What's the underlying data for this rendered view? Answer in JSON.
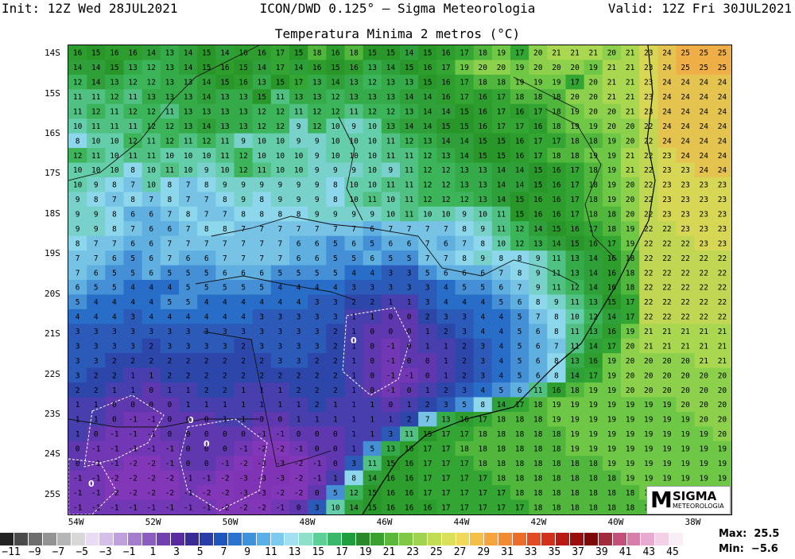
{
  "header": {
    "init": "Init: 12Z Wed 28JUL2021",
    "model": "ICON/DWD 0.125° — Sigma Meteorologia",
    "valid": "Valid: 12Z Fri 30JUL2021"
  },
  "map": {
    "title": "Temperatura Minima 2 metros (°C)",
    "lat_labels": [
      "14S",
      "15S",
      "16S",
      "17S",
      "18S",
      "19S",
      "20S",
      "21S",
      "22S",
      "23S",
      "24S",
      "25S"
    ],
    "lon_labels": [
      "54W",
      "52W",
      "50W",
      "48W",
      "46W",
      "44W",
      "42W",
      "40W",
      "38W"
    ],
    "lat_range": [
      -25.5,
      -13.8
    ],
    "lon_range": [
      -54.2,
      -37.0
    ],
    "contour_label": "0",
    "temperature_rows": [
      [
        16,
        15,
        16,
        16,
        14,
        13,
        14,
        15,
        14,
        16,
        16,
        17,
        15,
        18,
        16,
        18,
        15,
        15,
        14,
        15,
        16,
        17,
        18,
        19,
        17,
        20,
        21,
        21,
        21,
        20,
        21,
        23,
        24,
        25,
        25,
        25
      ],
      [
        14,
        14,
        15,
        13,
        12,
        13,
        14,
        15,
        16,
        15,
        14,
        17,
        14,
        16,
        15,
        16,
        13,
        14,
        15,
        16,
        17,
        19,
        20,
        20,
        19,
        20,
        20,
        20,
        19,
        21,
        21,
        23,
        24,
        25,
        25,
        25
      ],
      [
        12,
        14,
        13,
        12,
        12,
        13,
        13,
        14,
        15,
        16,
        13,
        15,
        17,
        13,
        14,
        13,
        12,
        13,
        13,
        15,
        16,
        17,
        18,
        18,
        19,
        19,
        19,
        17,
        20,
        21,
        21,
        23,
        24,
        24,
        24,
        24
      ],
      [
        11,
        11,
        12,
        11,
        13,
        13,
        13,
        14,
        13,
        13,
        15,
        11,
        13,
        13,
        12,
        13,
        13,
        13,
        14,
        14,
        16,
        17,
        16,
        17,
        18,
        18,
        18,
        20,
        20,
        21,
        21,
        23,
        24,
        24,
        24,
        24
      ],
      [
        11,
        12,
        11,
        12,
        12,
        11,
        13,
        13,
        13,
        13,
        12,
        12,
        11,
        12,
        12,
        11,
        12,
        12,
        13,
        14,
        14,
        15,
        16,
        17,
        16,
        17,
        18,
        19,
        20,
        20,
        21,
        23,
        24,
        24,
        24,
        24
      ],
      [
        10,
        11,
        11,
        11,
        12,
        12,
        13,
        14,
        13,
        13,
        12,
        12,
        9,
        12,
        10,
        9,
        10,
        13,
        14,
        14,
        15,
        15,
        16,
        17,
        17,
        16,
        18,
        19,
        19,
        20,
        20,
        22,
        24,
        24,
        24,
        24
      ],
      [
        8,
        10,
        10,
        12,
        11,
        12,
        11,
        12,
        11,
        9,
        10,
        10,
        9,
        9,
        10,
        10,
        10,
        11,
        12,
        13,
        14,
        14,
        15,
        15,
        16,
        17,
        17,
        18,
        18,
        19,
        20,
        22,
        24,
        24,
        24,
        24
      ],
      [
        12,
        11,
        10,
        11,
        11,
        10,
        10,
        10,
        11,
        12,
        10,
        10,
        10,
        9,
        10,
        10,
        10,
        11,
        11,
        12,
        13,
        14,
        15,
        15,
        16,
        17,
        18,
        18,
        19,
        19,
        21,
        22,
        23,
        24,
        24,
        24
      ],
      [
        10,
        10,
        10,
        8,
        10,
        11,
        10,
        9,
        10,
        12,
        11,
        10,
        10,
        9,
        9,
        9,
        10,
        9,
        11,
        12,
        12,
        13,
        13,
        14,
        14,
        15,
        16,
        17,
        18,
        19,
        21,
        22,
        23,
        23,
        24,
        24
      ],
      [
        10,
        9,
        8,
        7,
        10,
        8,
        7,
        8,
        9,
        9,
        9,
        9,
        9,
        9,
        8,
        10,
        10,
        11,
        11,
        12,
        12,
        13,
        13,
        14,
        14,
        15,
        16,
        17,
        18,
        19,
        20,
        22,
        23,
        23,
        23,
        23
      ],
      [
        9,
        8,
        7,
        8,
        7,
        8,
        7,
        7,
        8,
        9,
        8,
        9,
        9,
        9,
        8,
        10,
        11,
        10,
        11,
        12,
        12,
        12,
        13,
        14,
        15,
        16,
        16,
        17,
        18,
        19,
        20,
        22,
        23,
        23,
        23,
        23
      ],
      [
        9,
        9,
        8,
        6,
        6,
        7,
        8,
        7,
        7,
        8,
        8,
        8,
        8,
        9,
        9,
        9,
        9,
        10,
        11,
        10,
        10,
        9,
        10,
        11,
        15,
        16,
        16,
        17,
        18,
        18,
        20,
        22,
        23,
        23,
        23,
        23
      ],
      [
        9,
        9,
        8,
        7,
        6,
        6,
        7,
        8,
        8,
        7,
        7,
        7,
        7,
        7,
        7,
        7,
        6,
        7,
        7,
        7,
        7,
        8,
        9,
        11,
        12,
        14,
        15,
        16,
        17,
        18,
        19,
        22,
        22,
        23,
        23,
        23
      ],
      [
        8,
        7,
        7,
        6,
        6,
        7,
        7,
        7,
        7,
        7,
        7,
        7,
        6,
        6,
        5,
        6,
        5,
        6,
        6,
        7,
        6,
        7,
        8,
        10,
        12,
        13,
        14,
        15,
        16,
        17,
        19,
        22,
        22,
        22,
        23,
        23
      ],
      [
        7,
        7,
        6,
        5,
        6,
        7,
        6,
        6,
        7,
        7,
        7,
        7,
        6,
        6,
        5,
        5,
        6,
        5,
        5,
        7,
        7,
        8,
        9,
        8,
        8,
        9,
        11,
        13,
        14,
        16,
        18,
        22,
        22,
        22,
        22,
        22
      ],
      [
        7,
        6,
        5,
        5,
        6,
        5,
        5,
        5,
        6,
        6,
        6,
        5,
        5,
        5,
        5,
        4,
        4,
        3,
        3,
        5,
        6,
        6,
        6,
        7,
        8,
        9,
        11,
        13,
        14,
        16,
        18,
        22,
        22,
        22,
        22,
        22
      ],
      [
        6,
        5,
        5,
        4,
        4,
        4,
        5,
        5,
        5,
        5,
        5,
        4,
        4,
        4,
        4,
        3,
        3,
        3,
        3,
        3,
        4,
        5,
        5,
        6,
        7,
        9,
        11,
        12,
        14,
        16,
        18,
        22,
        22,
        22,
        22,
        22
      ],
      [
        5,
        4,
        4,
        4,
        4,
        5,
        5,
        4,
        4,
        4,
        4,
        4,
        4,
        3,
        3,
        2,
        2,
        1,
        1,
        3,
        4,
        4,
        4,
        5,
        6,
        8,
        9,
        11,
        13,
        15,
        17,
        22,
        22,
        22,
        22,
        22
      ],
      [
        4,
        4,
        4,
        3,
        4,
        4,
        4,
        4,
        4,
        4,
        3,
        3,
        3,
        3,
        3,
        1,
        1,
        0,
        0,
        2,
        3,
        3,
        4,
        4,
        5,
        7,
        8,
        10,
        12,
        14,
        17,
        22,
        22,
        22,
        22,
        22
      ],
      [
        3,
        3,
        3,
        3,
        3,
        3,
        3,
        3,
        3,
        3,
        3,
        3,
        3,
        3,
        2,
        1,
        0,
        0,
        0,
        1,
        2,
        3,
        4,
        4,
        5,
        6,
        8,
        11,
        13,
        16,
        19,
        21,
        21,
        21,
        21,
        21
      ],
      [
        3,
        3,
        3,
        3,
        2,
        3,
        3,
        3,
        3,
        2,
        3,
        3,
        3,
        3,
        2,
        1,
        0,
        -1,
        0,
        1,
        1,
        2,
        3,
        4,
        5,
        6,
        7,
        11,
        14,
        17,
        20,
        21,
        21,
        21,
        21,
        21
      ],
      [
        3,
        3,
        2,
        2,
        2,
        2,
        2,
        2,
        2,
        2,
        2,
        3,
        3,
        2,
        2,
        1,
        0,
        -1,
        0,
        0,
        1,
        2,
        3,
        4,
        5,
        6,
        8,
        13,
        16,
        19,
        20,
        20,
        20,
        20,
        21,
        21
      ],
      [
        3,
        2,
        2,
        1,
        1,
        2,
        2,
        2,
        2,
        2,
        2,
        2,
        2,
        2,
        2,
        1,
        0,
        -1,
        -1,
        0,
        1,
        2,
        3,
        4,
        5,
        6,
        8,
        14,
        17,
        19,
        20,
        20,
        20,
        20,
        20,
        20
      ],
      [
        2,
        2,
        1,
        1,
        0,
        1,
        1,
        2,
        2,
        1,
        1,
        1,
        2,
        2,
        2,
        1,
        0,
        -1,
        0,
        1,
        2,
        3,
        4,
        5,
        6,
        11,
        16,
        18,
        19,
        19,
        20,
        20,
        20,
        20,
        20,
        20
      ],
      [
        1,
        1,
        0,
        0,
        0,
        0,
        1,
        1,
        1,
        1,
        1,
        1,
        1,
        2,
        1,
        1,
        1,
        0,
        1,
        2,
        3,
        5,
        8,
        14,
        17,
        18,
        19,
        19,
        19,
        19,
        19,
        19,
        19,
        20,
        20,
        20
      ],
      [
        1,
        1,
        0,
        -1,
        -1,
        0,
        0,
        0,
        1,
        1,
        0,
        0,
        1,
        1,
        1,
        1,
        1,
        1,
        2,
        7,
        13,
        16,
        17,
        18,
        18,
        18,
        19,
        19,
        19,
        19,
        19,
        19,
        19,
        19,
        20,
        20
      ],
      [
        1,
        0,
        -1,
        -1,
        -1,
        0,
        0,
        0,
        0,
        0,
        -1,
        -1,
        0,
        0,
        0,
        1,
        1,
        3,
        11,
        15,
        17,
        17,
        18,
        18,
        18,
        18,
        18,
        19,
        19,
        19,
        19,
        19,
        19,
        19,
        19,
        20
      ],
      [
        0,
        -1,
        -1,
        -1,
        -1,
        -1,
        0,
        0,
        0,
        -1,
        -2,
        -2,
        -1,
        0,
        0,
        1,
        5,
        13,
        16,
        17,
        17,
        18,
        18,
        18,
        18,
        18,
        18,
        19,
        19,
        19,
        19,
        19,
        19,
        19,
        19,
        19
      ],
      [
        0,
        -1,
        -1,
        -2,
        -2,
        -1,
        0,
        0,
        -1,
        -2,
        -3,
        -3,
        -2,
        -1,
        0,
        3,
        11,
        15,
        16,
        17,
        17,
        17,
        18,
        18,
        18,
        18,
        18,
        18,
        18,
        19,
        19,
        19,
        19,
        19,
        19,
        19
      ],
      [
        -1,
        -1,
        -2,
        -2,
        -2,
        -2,
        -1,
        -1,
        -2,
        -3,
        -3,
        -3,
        -2,
        -1,
        1,
        8,
        14,
        16,
        16,
        17,
        17,
        17,
        17,
        18,
        18,
        18,
        18,
        18,
        18,
        18,
        19,
        19,
        19,
        19,
        19,
        19
      ],
      [
        -1,
        -1,
        -2,
        -2,
        -2,
        -2,
        -1,
        -2,
        -2,
        -3,
        -3,
        -2,
        -2,
        0,
        5,
        12,
        15,
        16,
        16,
        17,
        17,
        17,
        17,
        17,
        18,
        18,
        18,
        18,
        18,
        18,
        18,
        19,
        19,
        19,
        19,
        19
      ],
      [
        -1,
        -1,
        -1,
        -1,
        -1,
        -1,
        -1,
        -1,
        -2,
        -2,
        -2,
        -1,
        0,
        3,
        10,
        14,
        15,
        16,
        16,
        16,
        17,
        17,
        17,
        17,
        17,
        18,
        18,
        18,
        18,
        18,
        18,
        18,
        19,
        19,
        19,
        19
      ]
    ]
  },
  "colorbar": {
    "labels": [
      "-11",
      "-9",
      "-7",
      "-5",
      "-3",
      "-1",
      "1",
      "3",
      "5",
      "7",
      "9",
      "11",
      "13",
      "15",
      "17",
      "19",
      "21",
      "23",
      "25",
      "27",
      "29",
      "31",
      "33",
      "35",
      "37",
      "39",
      "41",
      "43",
      "45"
    ],
    "colors": [
      "#222222",
      "#4a4a4a",
      "#6e6e6e",
      "#939393",
      "#b6b6b6",
      "#d8d8d8",
      "#e8dcf2",
      "#d6bfe8",
      "#bf9fdc",
      "#a67dce",
      "#8d5cc0",
      "#7340b0",
      "#5a2aa0",
      "#3a2a96",
      "#2a3caa",
      "#1f56be",
      "#2a74cf",
      "#3d92dc",
      "#58b0e6",
      "#7ccbee",
      "#a2e0f2",
      "#8fe0c8",
      "#5fcf98",
      "#38b868",
      "#1e9e3c",
      "#2a8a2a",
      "#3aa030",
      "#5cb83a",
      "#7ec846",
      "#a0d450",
      "#c2dc56",
      "#dae05a",
      "#f0d858",
      "#f5c048",
      "#f6a43c",
      "#f28a32",
      "#ec6c2a",
      "#e24c22",
      "#d2301a",
      "#ba1a14",
      "#9c0e0e",
      "#7c0808",
      "#a22a3a",
      "#c2507a",
      "#d87eaa",
      "#e8aad0",
      "#f2d0e6",
      "#faeef6"
    ]
  },
  "stats": {
    "max_label": "Max:",
    "max_value": "25.5",
    "min_label": "Min:",
    "min_value": "−5.6"
  },
  "logo": {
    "mark": "M",
    "name": "SIGMA",
    "sub": "METEOROLOGIA"
  }
}
